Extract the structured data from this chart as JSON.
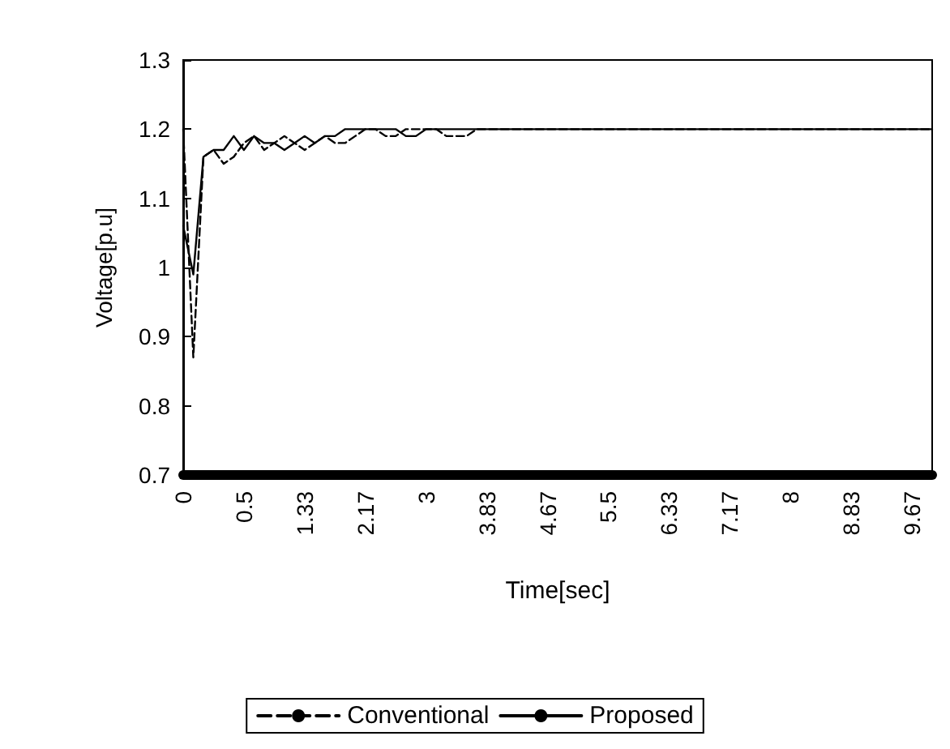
{
  "chart_data": {
    "type": "line",
    "xlabel": "Time[sec]",
    "ylabel": "Voltage[p.u]",
    "categories": [
      "0",
      null,
      null,
      null,
      null,
      null,
      "0.5",
      null,
      null,
      null,
      null,
      null,
      "1.33",
      null,
      null,
      null,
      null,
      null,
      "2.17",
      null,
      null,
      null,
      null,
      null,
      "3",
      null,
      null,
      null,
      null,
      null,
      "3.83",
      null,
      null,
      null,
      null,
      null,
      "4.67",
      null,
      null,
      null,
      null,
      null,
      "5.5",
      null,
      null,
      null,
      null,
      null,
      "6.33",
      null,
      null,
      null,
      null,
      null,
      "7.17",
      null,
      null,
      null,
      null,
      null,
      "8",
      null,
      null,
      null,
      null,
      null,
      "8.83",
      null,
      null,
      null,
      null,
      null,
      "9.67",
      null,
      null
    ],
    "series": [
      {
        "name": "Conventional",
        "color": "#000000",
        "line_style": "dashed",
        "values": [
          1.2,
          0.87,
          1.16,
          1.17,
          1.15,
          1.16,
          1.18,
          1.19,
          1.17,
          1.18,
          1.19,
          1.18,
          1.17,
          1.18,
          1.19,
          1.18,
          1.18,
          1.19,
          1.2,
          1.2,
          1.19,
          1.19,
          1.2,
          1.2,
          1.2,
          1.2,
          1.19,
          1.19,
          1.19,
          1.2,
          1.2,
          1.2,
          1.2,
          1.2,
          1.2,
          1.2,
          1.2,
          1.2,
          1.2,
          1.2,
          1.2,
          1.2,
          1.2,
          1.2,
          1.2,
          1.2,
          1.2,
          1.2,
          1.2,
          1.2,
          1.2,
          1.2,
          1.2,
          1.2,
          1.2,
          1.2,
          1.2,
          1.2,
          1.2,
          1.2,
          1.2,
          1.2,
          1.2,
          1.2,
          1.2,
          1.2,
          1.2,
          1.2,
          1.2,
          1.2,
          1.2,
          1.2,
          1.2,
          1.2,
          1.2
        ]
      },
      {
        "name": "Proposed",
        "color": "#000000",
        "line_style": "solid",
        "values": [
          1.06,
          0.99,
          1.16,
          1.17,
          1.17,
          1.19,
          1.17,
          1.19,
          1.18,
          1.18,
          1.17,
          1.18,
          1.19,
          1.18,
          1.19,
          1.19,
          1.2,
          1.2,
          1.2,
          1.2,
          1.2,
          1.2,
          1.19,
          1.19,
          1.2,
          1.2,
          1.2,
          1.2,
          1.2,
          1.2,
          1.2,
          1.2,
          1.2,
          1.2,
          1.2,
          1.2,
          1.2,
          1.2,
          1.2,
          1.2,
          1.2,
          1.2,
          1.2,
          1.2,
          1.2,
          1.2,
          1.2,
          1.2,
          1.2,
          1.2,
          1.2,
          1.2,
          1.2,
          1.2,
          1.2,
          1.2,
          1.2,
          1.2,
          1.2,
          1.2,
          1.2,
          1.2,
          1.2,
          1.2,
          1.2,
          1.2,
          1.2,
          1.2,
          1.2,
          1.2,
          1.2,
          1.2,
          1.2,
          1.2,
          1.2
        ]
      }
    ],
    "ylim": [
      0.7,
      1.3
    ],
    "yticks": [
      0.7,
      0.8,
      0.9,
      1,
      1.1,
      1.2,
      1.3
    ],
    "grid": false,
    "legend": "bottom",
    "marker": "none"
  }
}
